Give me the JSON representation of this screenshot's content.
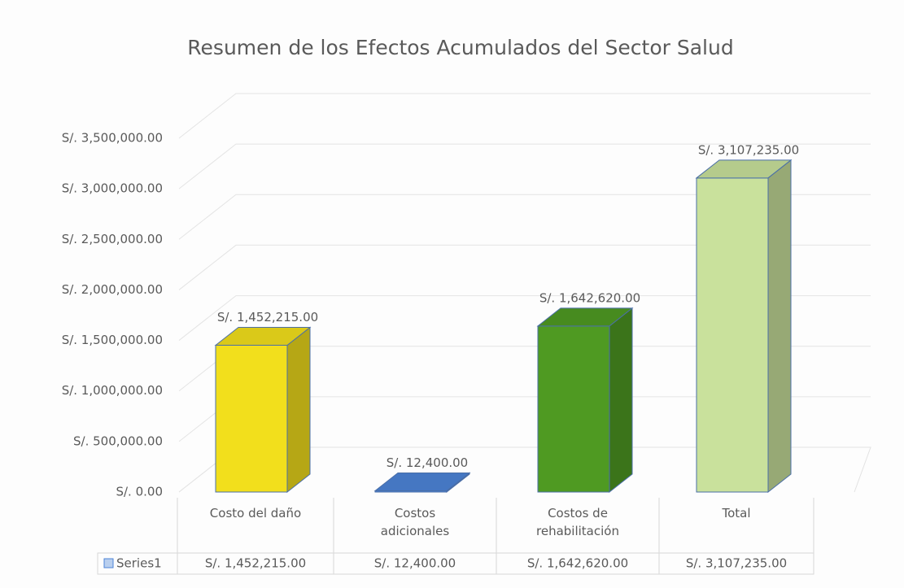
{
  "chart_data": {
    "type": "bar3d",
    "title": "Resumen de los Efectos Acumulados del Sector Salud",
    "categories": [
      "Costo del daño",
      "Costos adicionales",
      "Costos de rehabilitación",
      "Total"
    ],
    "series": [
      {
        "name": "Series1",
        "values": [
          1452215,
          12400,
          1642620,
          3107235
        ],
        "value_labels": [
          "S/. 1,452,215.00",
          "S/. 12,400.00",
          "S/. 1,642,620.00",
          "S/. 3,107,235.00"
        ],
        "colors": [
          "#f2df1c",
          "#4d84d8",
          "#4f9a22",
          "#c9e19c"
        ]
      }
    ],
    "ylim": [
      0,
      3500000
    ],
    "yticks": [
      {
        "value": 0,
        "label": "S/. 0.00"
      },
      {
        "value": 500000,
        "label": "S/. 500,000.00"
      },
      {
        "value": 1000000,
        "label": "S/. 1,000,000.00"
      },
      {
        "value": 1500000,
        "label": "S/. 1,500,000.00"
      },
      {
        "value": 2000000,
        "label": "S/. 2,000,000.00"
      },
      {
        "value": 2500000,
        "label": "S/. 2,500,000.00"
      },
      {
        "value": 3000000,
        "label": "S/. 3,000,000.00"
      },
      {
        "value": 3500000,
        "label": "S/. 3,500,000.00"
      }
    ],
    "grid": true,
    "data_table": true
  }
}
